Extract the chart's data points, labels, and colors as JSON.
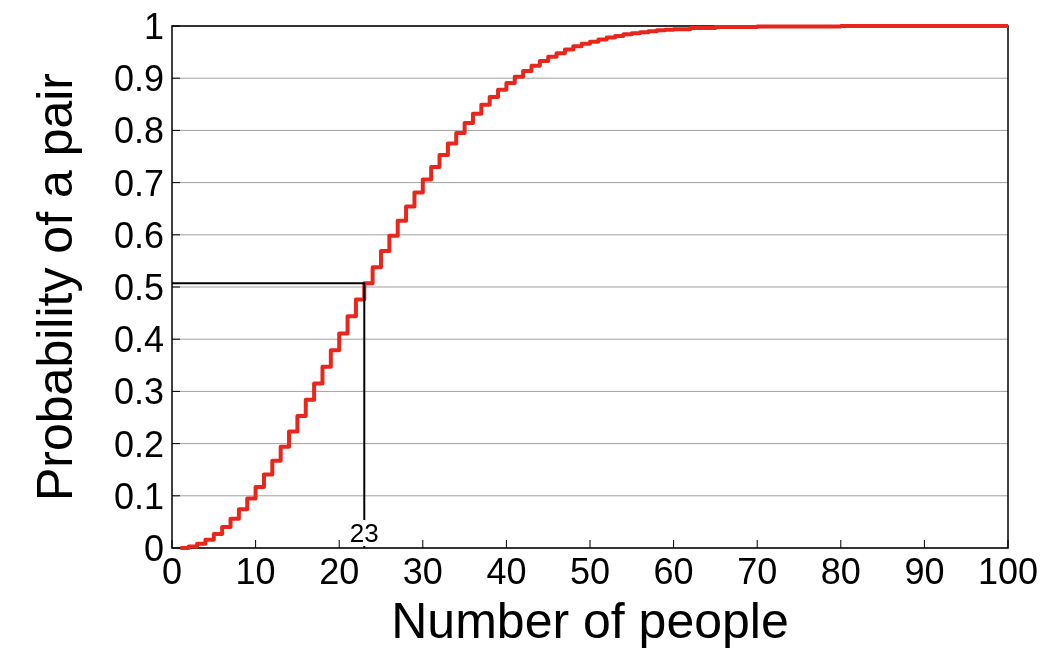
{
  "chart_data": {
    "type": "step",
    "xlabel": "Number of people",
    "ylabel": "Probability of a pair",
    "xlim": [
      0,
      100
    ],
    "xticks": [
      0,
      10,
      20,
      30,
      40,
      50,
      60,
      70,
      80,
      90,
      100
    ],
    "ylim": [
      0,
      1
    ],
    "yticks": [
      0,
      0.1,
      0.2,
      0.3,
      0.4,
      0.5,
      0.6,
      0.7,
      0.8,
      0.9,
      1
    ],
    "grid": "y",
    "line_style": "solid",
    "series": [
      {
        "color": "#e8261c",
        "x": [
          1,
          2,
          3,
          4,
          5,
          6,
          7,
          8,
          9,
          10,
          11,
          12,
          13,
          14,
          15,
          16,
          17,
          18,
          19,
          20,
          21,
          22,
          23,
          24,
          25,
          26,
          27,
          28,
          29,
          30,
          31,
          32,
          33,
          34,
          35,
          36,
          37,
          38,
          39,
          40,
          41,
          42,
          43,
          44,
          45,
          46,
          47,
          48,
          49,
          50,
          51,
          52,
          53,
          54,
          55,
          56,
          57,
          58,
          59,
          60,
          62,
          65,
          70,
          80,
          100
        ],
        "values": [
          0,
          0.003,
          0.008,
          0.016,
          0.027,
          0.04,
          0.056,
          0.074,
          0.095,
          0.117,
          0.141,
          0.167,
          0.194,
          0.223,
          0.253,
          0.284,
          0.315,
          0.347,
          0.379,
          0.411,
          0.444,
          0.476,
          0.507,
          0.538,
          0.569,
          0.598,
          0.627,
          0.654,
          0.681,
          0.706,
          0.73,
          0.753,
          0.775,
          0.795,
          0.814,
          0.832,
          0.849,
          0.864,
          0.878,
          0.891,
          0.903,
          0.914,
          0.924,
          0.933,
          0.941,
          0.948,
          0.955,
          0.961,
          0.966,
          0.97,
          0.974,
          0.978,
          0.981,
          0.984,
          0.986,
          0.988,
          0.99,
          0.992,
          0.993,
          0.994,
          0.996,
          0.998,
          0.999,
          1,
          1
        ]
      },
      {
        "type": "line",
        "color": "#000000",
        "x": [
          0,
          23,
          23
        ],
        "values": [
          0.507,
          0.507,
          0
        ]
      }
    ],
    "annotations": [
      {
        "text": "23",
        "x": 23,
        "y": 0
      }
    ]
  }
}
